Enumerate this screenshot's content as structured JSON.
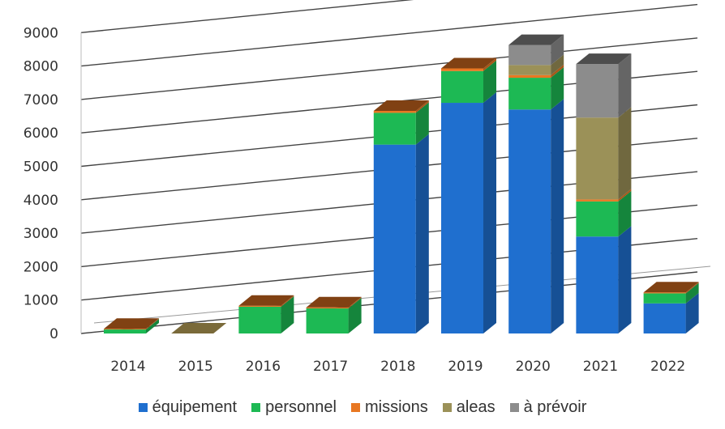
{
  "chart_data": {
    "type": "bar",
    "stacked": true,
    "three_d": true,
    "title": "",
    "xlabel": "",
    "ylabel": "",
    "categories": [
      "2014",
      "2015",
      "2016",
      "2017",
      "2018",
      "2019",
      "2020",
      "2021",
      "2022"
    ],
    "ylim": [
      0,
      9000
    ],
    "yticks": [
      "0",
      "1000",
      "2000",
      "3000",
      "4000",
      "5000",
      "6000",
      "7000",
      "8000",
      "9000"
    ],
    "grid": true,
    "legend_position": "bottom",
    "series": [
      {
        "name": "équipement",
        "color": "#1F6FCF",
        "values": [
          0,
          0,
          0,
          0,
          5650,
          6900,
          6700,
          2900,
          900
        ]
      },
      {
        "name": "personnel",
        "color": "#1DB954",
        "values": [
          120,
          0,
          800,
          750,
          950,
          950,
          950,
          1050,
          300
        ]
      },
      {
        "name": "missions",
        "color": "#E87722",
        "values": [
          20,
          0,
          30,
          30,
          60,
          80,
          80,
          60,
          30
        ]
      },
      {
        "name": "aleas",
        "color": "#9B9158",
        "values": [
          0,
          0,
          0,
          0,
          0,
          0,
          300,
          2450,
          0
        ]
      },
      {
        "name": "à prévoir",
        "color": "#8C8C8C",
        "values": [
          0,
          0,
          0,
          0,
          0,
          0,
          600,
          1600,
          0
        ]
      }
    ]
  }
}
